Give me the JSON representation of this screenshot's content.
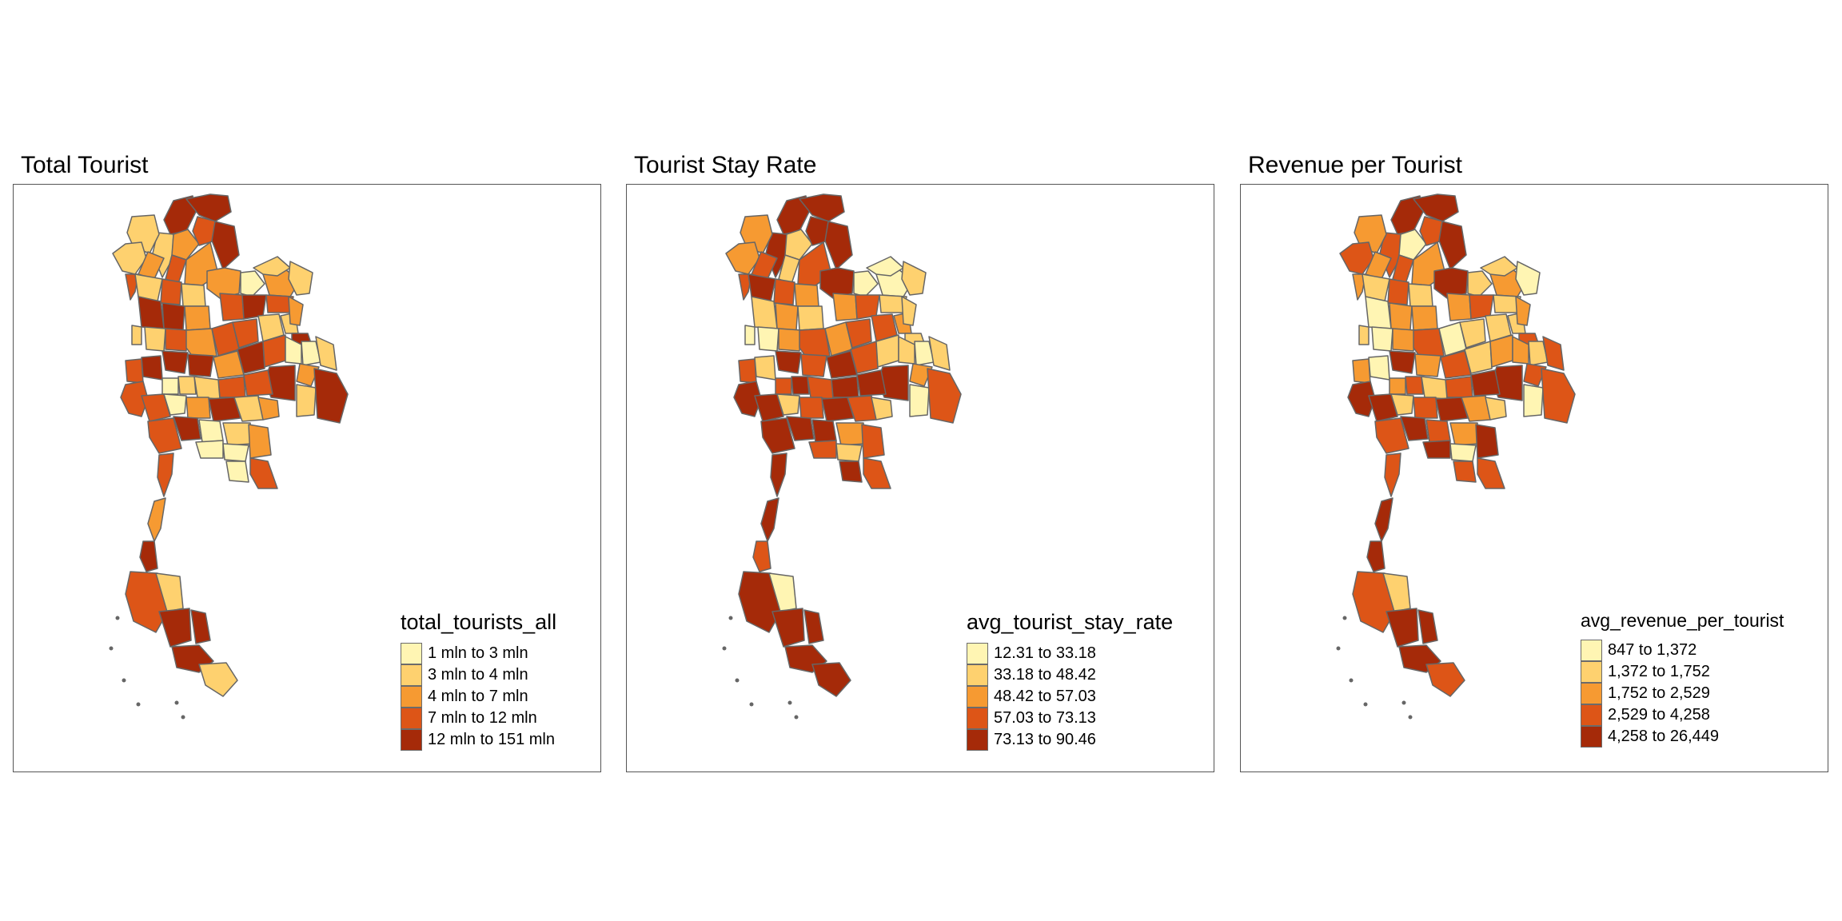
{
  "palette": [
    "#FFF5B3",
    "#FED16F",
    "#F69A32",
    "#DD5517",
    "#A52A09"
  ],
  "border_color": "#666666",
  "panels": [
    {
      "title": "Total Tourist",
      "legend_title": "total_tourists_all",
      "legend_labels": [
        "1 mln to 3 mln",
        "3 mln to 4 mln",
        "4 mln to 7 mln",
        "7 mln to 12 mln",
        "12 mln to 151 mln"
      ],
      "region_classes": [
        4,
        4,
        1,
        1,
        2,
        3,
        4,
        1,
        2,
        3,
        2,
        3,
        1,
        3,
        1,
        2,
        0,
        2,
        1,
        1,
        3,
        4,
        3,
        4,
        4,
        2,
        1,
        1,
        3,
        2,
        3,
        3,
        1,
        1,
        2,
        4,
        4,
        4,
        4,
        3,
        2,
        4,
        3,
        0,
        0,
        1,
        2,
        4,
        3,
        3,
        1,
        1,
        0,
        1,
        4,
        3,
        3,
        0,
        2,
        4,
        1,
        2,
        3,
        4,
        0,
        0,
        1,
        0,
        2,
        0,
        3,
        3,
        2,
        4,
        3,
        1,
        4
      ]
    },
    {
      "title": "Tourist Stay Rate",
      "legend_title": "avg_tourist_stay_rate",
      "legend_labels": [
        "12.31 to 33.18",
        "33.18 to 48.42",
        "48.42 to 57.03",
        "57.03 to 73.13",
        "73.13 to 90.46"
      ],
      "region_classes": [
        4,
        4,
        4,
        2,
        1,
        4,
        4,
        2,
        3,
        1,
        3,
        3,
        4,
        3,
        2,
        4,
        0,
        0,
        0,
        1,
        2,
        3,
        1,
        2,
        1,
        1,
        0,
        0,
        2,
        3,
        2,
        3,
        3,
        2,
        1,
        1,
        4,
        3,
        1,
        3,
        4,
        3,
        1,
        1,
        0,
        1,
        2,
        4,
        4,
        4,
        3,
        4,
        3,
        0,
        3,
        4,
        4,
        1,
        3,
        4,
        3,
        1,
        4,
        4,
        4,
        3,
        2,
        1,
        3,
        4,
        3,
        4,
        4,
        3,
        4,
        0,
        4
      ]
    },
    {
      "title": "Revenue per Tourist",
      "legend_title": "avg_revenue_per_tourist",
      "legend_labels": [
        "847 to 1,372",
        "1,372 to 1,752",
        "1,752 to 2,529",
        "2,529 to 4,258",
        "4,258 to 26,449"
      ],
      "region_classes": [
        4,
        4,
        3,
        2,
        0,
        3,
        4,
        3,
        2,
        3,
        2,
        2,
        1,
        3,
        1,
        4,
        1,
        2,
        1,
        0,
        2,
        3,
        1,
        2,
        0,
        2,
        1,
        0,
        2,
        3,
        0,
        1,
        1,
        1,
        2,
        3,
        4,
        2,
        0,
        2,
        3,
        1,
        2,
        2,
        1,
        3,
        3,
        4,
        4,
        3,
        1,
        3,
        2,
        0,
        3,
        4,
        4,
        1,
        3,
        4,
        2,
        1,
        3,
        4,
        3,
        4,
        2,
        0,
        4,
        3,
        3,
        3,
        4,
        4,
        3,
        1,
        4
      ]
    }
  ]
}
